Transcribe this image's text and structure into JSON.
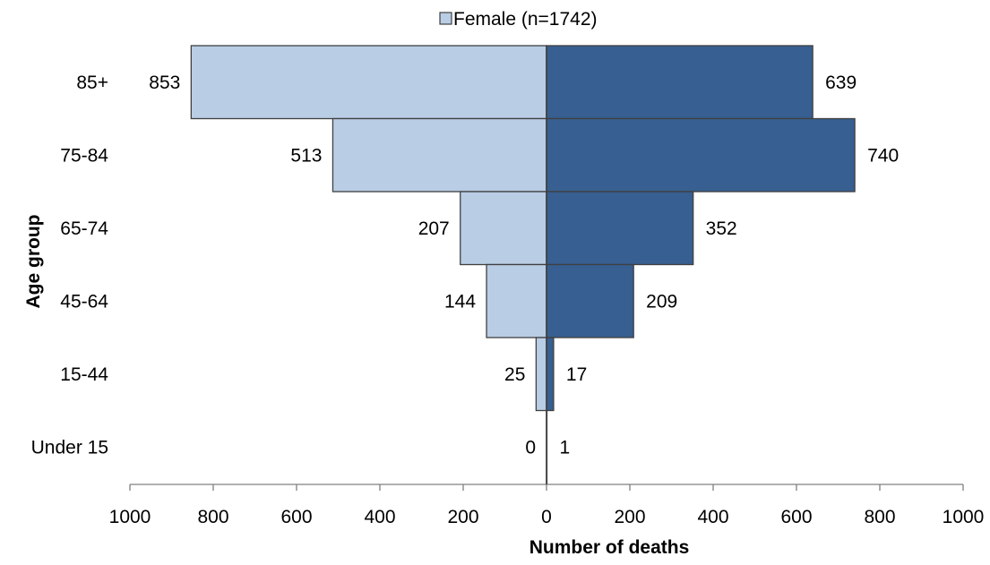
{
  "chart_data": {
    "type": "bar",
    "orientation": "horizontal-pyramid",
    "categories": [
      "85+",
      "75-84",
      "65-74",
      "45-64",
      "15-44",
      "Under 15"
    ],
    "series": [
      {
        "name": "Female (n=1742)",
        "side": "left",
        "values": [
          853,
          513,
          207,
          144,
          25,
          0
        ],
        "color": "#b9cde5"
      },
      {
        "values": [
          639,
          740,
          352,
          209,
          17,
          1
        ],
        "color": "#375f91"
      }
    ],
    "xlabel": "Number of deaths",
    "ylabel": "Age group",
    "xlim": [
      -1000,
      1000
    ],
    "x_ticks": [
      -1000,
      -800,
      -600,
      -400,
      -200,
      0,
      200,
      400,
      600,
      800,
      1000
    ],
    "x_tick_labels": [
      "1000",
      "800",
      "600",
      "400",
      "200",
      "0",
      "200",
      "400",
      "600",
      "800",
      "1000"
    ],
    "grid": false,
    "legend": {
      "position": "top-center",
      "entries": [
        "Female (n=1742)"
      ]
    }
  }
}
